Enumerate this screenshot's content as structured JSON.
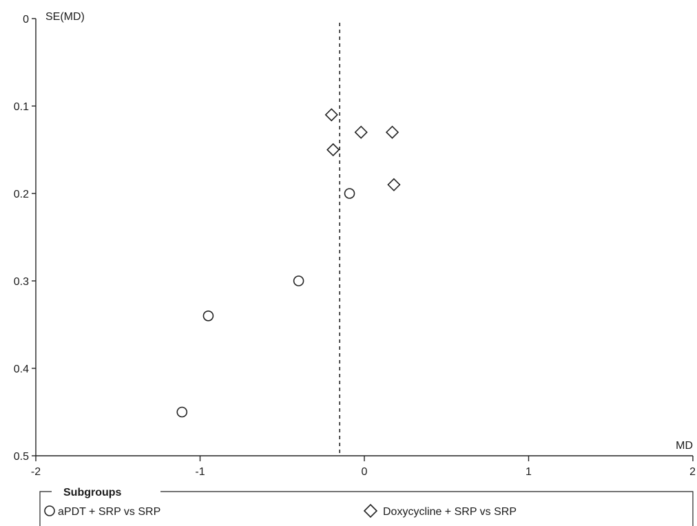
{
  "chart_data": {
    "type": "scatter",
    "title": "",
    "xlabel": "MD",
    "ylabel": "SE(MD)",
    "xlim": [
      -2,
      2
    ],
    "ylim": [
      0,
      0.5
    ],
    "y_inverted": true,
    "x_ticks": [
      "-2",
      "-1",
      "0",
      "1",
      "2"
    ],
    "y_ticks": [
      "0",
      "0.1",
      "0.2",
      "0.3",
      "0.4",
      "0.5"
    ],
    "reference_line_x": -0.15,
    "grid": false,
    "legend": {
      "title": "Subgroups",
      "placement": "bottom"
    },
    "series": [
      {
        "name": "aPDT + SRP vs SRP",
        "marker": "circle",
        "points": [
          {
            "x": -1.11,
            "y": 0.45
          },
          {
            "x": -0.95,
            "y": 0.34
          },
          {
            "x": -0.4,
            "y": 0.3
          },
          {
            "x": -0.09,
            "y": 0.2
          }
        ]
      },
      {
        "name": "Doxycycline + SRP vs SRP",
        "marker": "diamond",
        "points": [
          {
            "x": -0.2,
            "y": 0.11
          },
          {
            "x": -0.19,
            "y": 0.15
          },
          {
            "x": -0.02,
            "y": 0.13
          },
          {
            "x": 0.17,
            "y": 0.13
          },
          {
            "x": 0.18,
            "y": 0.19
          }
        ]
      }
    ],
    "colors": {
      "stroke": "#222222",
      "marker_fill": "#ffffff"
    }
  }
}
